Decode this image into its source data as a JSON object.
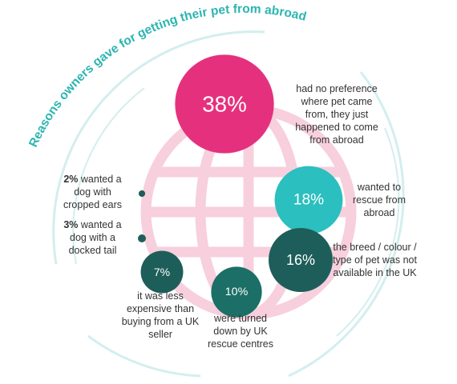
{
  "chart_data": {
    "type": "bubble",
    "title": "Reasons owners gave for getting their pet from abroad",
    "categories": [
      "had no preference where pet came from, they just happened to come from abroad",
      "wanted to rescue from abroad",
      "the breed / colour / type of pet was not available in the UK",
      "were turned down by UK rescue centres",
      "it was less expensive than buying from a UK seller",
      "wanted a dog with cropped ears",
      "wanted a dog with a docked tail"
    ],
    "values": [
      38,
      18,
      16,
      10,
      7,
      2,
      3
    ],
    "value_labels": [
      "38%",
      "18%",
      "16%",
      "10%",
      "7%",
      "2%",
      "3%"
    ],
    "colors": [
      "#e5317d",
      "#2bbfbf",
      "#1e5e5a",
      "#1b6f66",
      "#1e5e5a",
      "#1e5e5a",
      "#1e5e5a"
    ]
  }
}
